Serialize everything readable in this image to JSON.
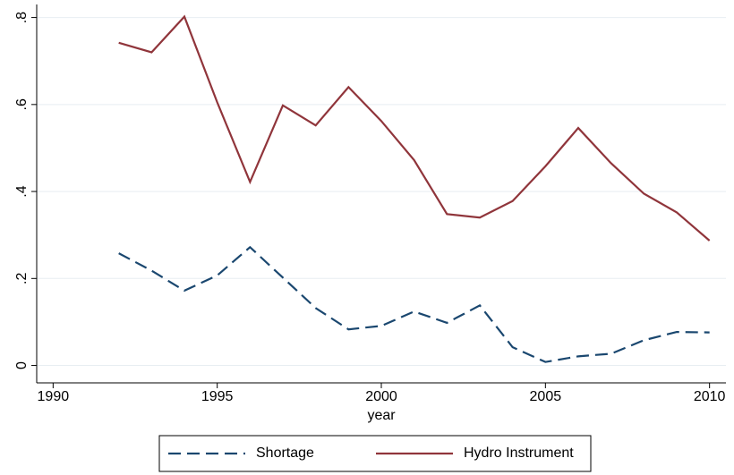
{
  "chart_data": {
    "type": "line",
    "x": [
      1992,
      1993,
      1994,
      1995,
      1996,
      1997,
      1998,
      1999,
      2000,
      2001,
      2002,
      2003,
      2004,
      2005,
      2006,
      2007,
      2008,
      2009,
      2010
    ],
    "series": [
      {
        "name": "Shortage",
        "color": "#1a476f",
        "dash": true,
        "values": [
          0.258,
          0.218,
          0.172,
          0.207,
          0.272,
          0.202,
          0.132,
          0.083,
          0.091,
          0.124,
          0.098,
          0.138,
          0.042,
          0.008,
          0.021,
          0.027,
          0.058,
          0.077,
          0.076
        ]
      },
      {
        "name": "Hydro Instrument",
        "color": "#90353b",
        "dash": false,
        "values": [
          0.742,
          0.72,
          0.802,
          0.605,
          0.422,
          0.598,
          0.552,
          0.64,
          0.562,
          0.472,
          0.348,
          0.34,
          0.378,
          0.458,
          0.546,
          0.465,
          0.395,
          0.352,
          0.287
        ]
      }
    ],
    "xlabel": "year",
    "xlim": [
      1989.5,
      2010.5
    ],
    "xticks": [
      1990,
      1995,
      2000,
      2005,
      2010
    ],
    "ylim": [
      -0.04,
      0.83
    ],
    "yticks": [
      0,
      {
        "value": 0.2,
        "label": ".2"
      },
      {
        "value": 0.4,
        "label": ".4"
      },
      {
        "value": 0.6,
        "label": ".6"
      },
      {
        "value": 0.8,
        "label": ".8"
      }
    ],
    "grid": true,
    "legend": "bottom"
  }
}
